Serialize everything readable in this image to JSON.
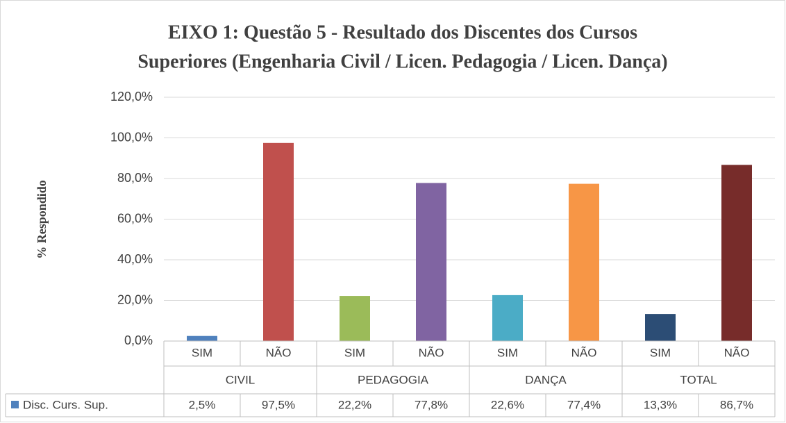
{
  "chart_data": {
    "type": "bar",
    "title": "EIXO 1:  Questão 5 - Resultado dos Discentes dos Cursos",
    "subtitle": "Superiores (Engenharia Civil / Licen. Pedagogia / Licen. Dança)",
    "y_label": "% Respondido",
    "categories": [
      "SIM",
      "NÃO",
      "SIM",
      "NÃO",
      "SIM",
      "NÃO",
      "SIM",
      "NÃO"
    ],
    "groups": [
      "CIVIL",
      "PEDAGOGIA",
      "DANÇA",
      "TOTAL"
    ],
    "series": [
      {
        "name": "Disc. Curs. Sup.",
        "color": "#4f81bd",
        "values": [
          2.5,
          97.5,
          22.2,
          77.8,
          22.6,
          77.4,
          13.3,
          86.7
        ],
        "value_labels": [
          "2,5%",
          "97,5%",
          "22,2%",
          "77,8%",
          "22,6%",
          "77,4%",
          "13,3%",
          "86,7%"
        ],
        "point_colors": [
          "#4f81bd",
          "#c0504d",
          "#9bbb59",
          "#8064a2",
          "#4bacc6",
          "#f79646",
          "#2c4d75",
          "#772c2a"
        ]
      }
    ],
    "ylim": [
      0,
      120
    ],
    "yticks": [
      {
        "value": 0,
        "label": "0,0%"
      },
      {
        "value": 20,
        "label": "20,0%"
      },
      {
        "value": 40,
        "label": "40,0%"
      },
      {
        "value": 60,
        "label": "60,0%"
      },
      {
        "value": 80,
        "label": "80,0%"
      },
      {
        "value": 100,
        "label": "100,0%"
      },
      {
        "value": 120,
        "label": "120,0%"
      }
    ],
    "grid": true
  }
}
